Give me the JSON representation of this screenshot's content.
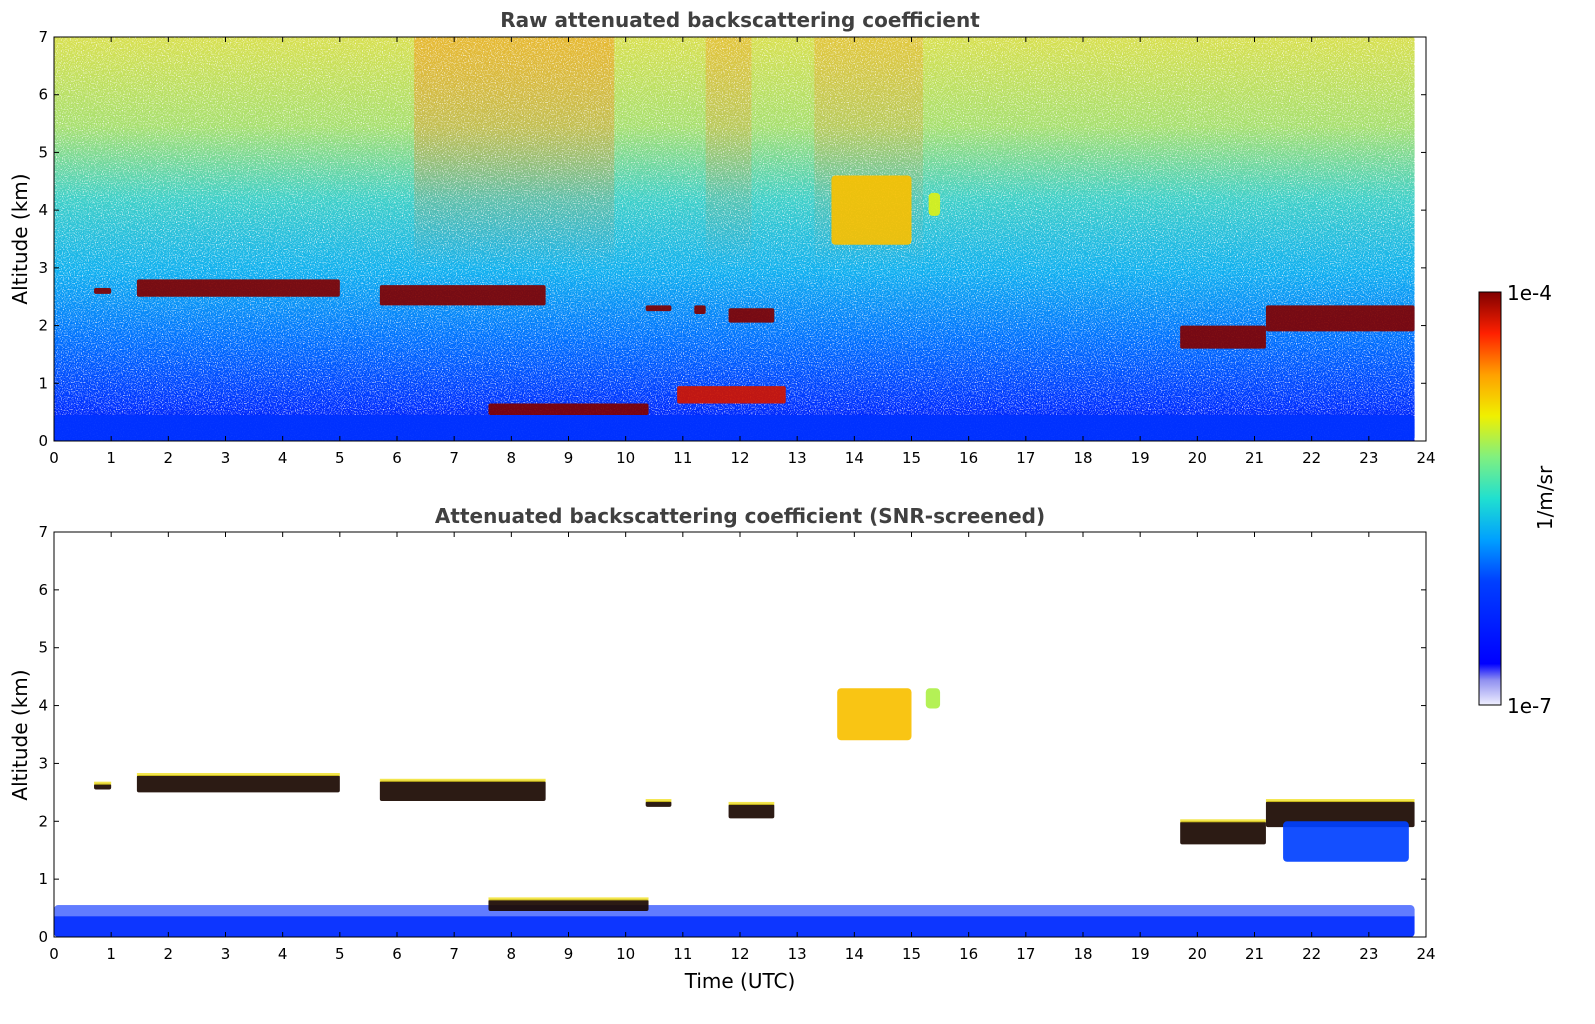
{
  "chart_data": [
    {
      "type": "heatmap",
      "title": "Raw attenuated backscattering coefficient",
      "xlabel": "",
      "ylabel": "Altitude (km)",
      "xlim": [
        0,
        24
      ],
      "ylim": [
        0,
        7
      ],
      "xticks": [
        "0",
        "1",
        "2",
        "3",
        "4",
        "5",
        "6",
        "7",
        "8",
        "9",
        "10",
        "11",
        "12",
        "13",
        "14",
        "15",
        "16",
        "17",
        "18",
        "19",
        "20",
        "21",
        "22",
        "23",
        "24"
      ],
      "yticks": [
        "0",
        "1",
        "2",
        "3",
        "4",
        "5",
        "6",
        "7"
      ],
      "data_end_hour": 23.8,
      "layers": [
        {
          "name": "boundary layer (near-surface)",
          "x": [
            0,
            23.8
          ],
          "y": [
            0,
            0.45
          ],
          "level": 0.25
        },
        {
          "name": "cloud layer",
          "x": [
            0.7,
            1.0
          ],
          "y": [
            2.55,
            2.65
          ],
          "level": 1.0
        },
        {
          "name": "cloud layer",
          "x": [
            1.45,
            5.0
          ],
          "y": [
            2.5,
            2.8
          ],
          "level": 1.0
        },
        {
          "name": "cloud layer",
          "x": [
            5.7,
            8.6
          ],
          "y": [
            2.35,
            2.7
          ],
          "level": 1.0
        },
        {
          "name": "cloud layer",
          "x": [
            10.35,
            10.8
          ],
          "y": [
            2.25,
            2.35
          ],
          "level": 1.0
        },
        {
          "name": "cloud layer",
          "x": [
            11.2,
            11.4
          ],
          "y": [
            2.2,
            2.35
          ],
          "level": 1.0
        },
        {
          "name": "cloud layer",
          "x": [
            11.8,
            12.6
          ],
          "y": [
            2.05,
            2.3
          ],
          "level": 1.0
        },
        {
          "name": "cloud layer",
          "x": [
            7.6,
            10.4
          ],
          "y": [
            0.45,
            0.65
          ],
          "level": 1.0
        },
        {
          "name": "cloud layer",
          "x": [
            10.9,
            12.8
          ],
          "y": [
            0.65,
            0.95
          ],
          "level": 0.95
        },
        {
          "name": "cloud layer",
          "x": [
            19.7,
            21.2
          ],
          "y": [
            1.6,
            2.0
          ],
          "level": 1.0
        },
        {
          "name": "cloud layer",
          "x": [
            21.2,
            23.8
          ],
          "y": [
            1.9,
            2.35
          ],
          "level": 1.0
        },
        {
          "name": "elevated aerosol plume",
          "x": [
            13.6,
            15.0
          ],
          "y": [
            3.4,
            4.6
          ],
          "level": 0.78
        },
        {
          "name": "elevated aerosol plume",
          "x": [
            15.3,
            15.5
          ],
          "y": [
            3.9,
            4.3
          ],
          "level": 0.7
        }
      ]
    },
    {
      "type": "heatmap",
      "title": "Attenuated backscattering coefficient (SNR-screened)",
      "xlabel": "Time (UTC)",
      "ylabel": "Altitude (km)",
      "xlim": [
        0,
        24
      ],
      "ylim": [
        0,
        7
      ],
      "xticks": [
        "0",
        "1",
        "2",
        "3",
        "4",
        "5",
        "6",
        "7",
        "8",
        "9",
        "10",
        "11",
        "12",
        "13",
        "14",
        "15",
        "16",
        "17",
        "18",
        "19",
        "20",
        "21",
        "22",
        "23",
        "24"
      ],
      "yticks": [
        "0",
        "1",
        "2",
        "3",
        "4",
        "5",
        "6",
        "7"
      ],
      "data_end_hour": 23.8,
      "layers": [
        {
          "name": "boundary layer (near-surface)",
          "x": [
            0,
            23.8
          ],
          "y": [
            0,
            0.55
          ],
          "level": 0.22
        },
        {
          "name": "cloud layer",
          "x": [
            0.7,
            1.0
          ],
          "y": [
            2.55,
            2.65
          ],
          "level": 1.0
        },
        {
          "name": "cloud layer",
          "x": [
            1.45,
            5.0
          ],
          "y": [
            2.5,
            2.8
          ],
          "level": 1.0
        },
        {
          "name": "cloud layer",
          "x": [
            5.7,
            8.6
          ],
          "y": [
            2.35,
            2.7
          ],
          "level": 1.0
        },
        {
          "name": "cloud layer",
          "x": [
            10.35,
            10.8
          ],
          "y": [
            2.25,
            2.35
          ],
          "level": 1.0
        },
        {
          "name": "cloud layer",
          "x": [
            11.8,
            12.6
          ],
          "y": [
            2.05,
            2.3
          ],
          "level": 1.0
        },
        {
          "name": "cloud layer",
          "x": [
            7.6,
            10.4
          ],
          "y": [
            0.45,
            0.65
          ],
          "level": 1.0
        },
        {
          "name": "cloud layer",
          "x": [
            19.7,
            21.2
          ],
          "y": [
            1.6,
            2.0
          ],
          "level": 1.0
        },
        {
          "name": "cloud layer",
          "x": [
            21.2,
            23.8
          ],
          "y": [
            1.9,
            2.35
          ],
          "level": 1.0
        },
        {
          "name": "elevated aerosol plume",
          "x": [
            13.7,
            15.0
          ],
          "y": [
            3.4,
            4.3
          ],
          "level": 0.78
        },
        {
          "name": "elevated aerosol plume",
          "x": [
            15.25,
            15.5
          ],
          "y": [
            3.95,
            4.3
          ],
          "level": 0.66
        },
        {
          "name": "aerosol under cloud",
          "x": [
            21.5,
            23.7
          ],
          "y": [
            1.3,
            2.0
          ],
          "level": 0.3
        }
      ]
    }
  ],
  "colorbar": {
    "label": "1/m/sr",
    "min_label": "1e-7",
    "max_label": "1e-4",
    "colormap": "jet",
    "scale": "log"
  }
}
